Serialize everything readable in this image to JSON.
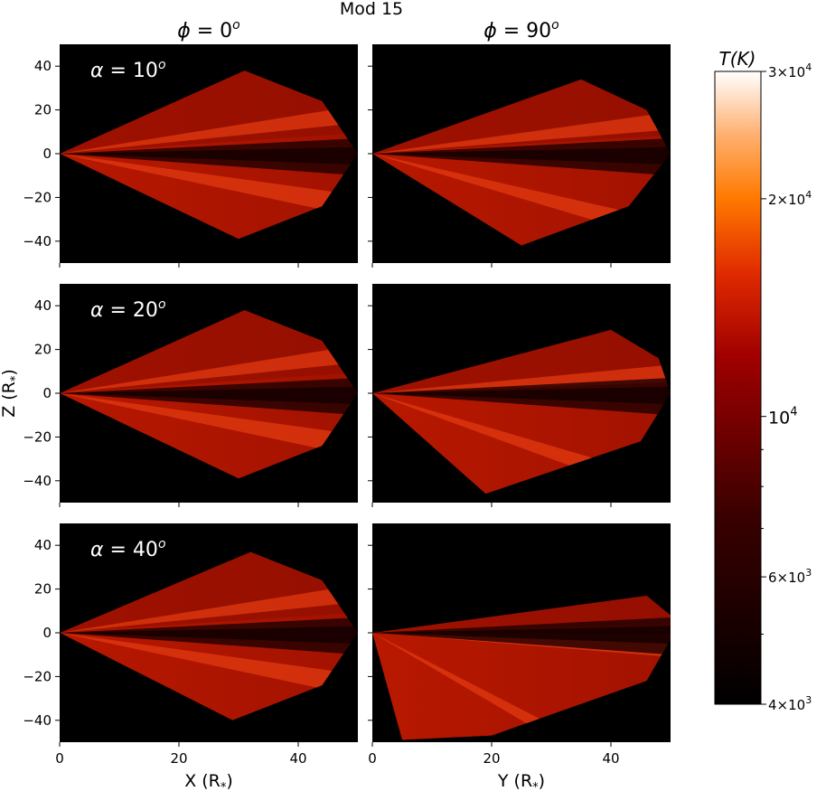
{
  "figure": {
    "title": "Mod 15",
    "column_titles": [
      {
        "var": "ϕ",
        "rest": " = 0",
        "sup": "o"
      },
      {
        "var": "ϕ",
        "rest": " = 90",
        "sup": "o"
      }
    ],
    "row_labels": [
      {
        "var": "α",
        "rest": " = 10",
        "sup": "o"
      },
      {
        "var": "α",
        "rest": " = 20",
        "sup": "o"
      },
      {
        "var": "α",
        "rest": " = 40",
        "sup": "o"
      }
    ],
    "ylabel": {
      "main": "Z (R",
      "sub": "*",
      "close": ")"
    },
    "xlabels": [
      {
        "main": "X (R",
        "sub": "*",
        "close": ")"
      },
      {
        "main": "Y (R",
        "sub": "*",
        "close": ")"
      }
    ]
  },
  "chart_data": {
    "type": "heatmap",
    "title": "Mod 15",
    "grid": false,
    "layout": "3 rows x 2 columns",
    "x_ticks": [
      0,
      20,
      40
    ],
    "y_ticks": [
      40,
      20,
      0,
      -20,
      -40
    ],
    "xlim": [
      0,
      50
    ],
    "ylim": [
      -50,
      50
    ],
    "panels": [
      {
        "column": "ϕ = 0°",
        "alpha": "α = 10°",
        "xlabel": "X (R*)",
        "ylabel": "Z (R*)",
        "outline": [
          [
            0,
            0
          ],
          [
            31,
            38
          ],
          [
            44,
            24
          ],
          [
            50,
            0
          ],
          [
            44,
            -24
          ],
          [
            30,
            -39
          ],
          [
            0,
            0
          ]
        ],
        "bright_streaks_z": [
          6,
          -8
        ]
      },
      {
        "column": "ϕ = 90°",
        "alpha": "α = 10°",
        "xlabel": "Y (R*)",
        "outline": [
          [
            0,
            0
          ],
          [
            35,
            34
          ],
          [
            46,
            20
          ],
          [
            50,
            0
          ],
          [
            43,
            -24
          ],
          [
            25,
            -42
          ],
          [
            0,
            0
          ]
        ],
        "bright_streaks_z": [
          5,
          -12
        ]
      },
      {
        "column": "ϕ = 0°",
        "alpha": "α = 20°",
        "xlabel": "X (R*)",
        "ylabel": "Z (R*)",
        "outline": [
          [
            0,
            0
          ],
          [
            31,
            38
          ],
          [
            44,
            24
          ],
          [
            50,
            0
          ],
          [
            44,
            -24
          ],
          [
            30,
            -39
          ],
          [
            0,
            0
          ]
        ],
        "bright_streaks_z": [
          6,
          -8
        ]
      },
      {
        "column": "ϕ = 90°",
        "alpha": "α = 20°",
        "xlabel": "Y (R*)",
        "outline": [
          [
            0,
            0
          ],
          [
            40,
            29
          ],
          [
            48,
            16
          ],
          [
            50,
            0
          ],
          [
            45,
            -22
          ],
          [
            19,
            -46
          ],
          [
            0,
            0
          ]
        ],
        "bright_streaks_z": [
          3,
          -15
        ]
      },
      {
        "column": "ϕ = 0°",
        "alpha": "α = 40°",
        "xlabel": "X (R*)",
        "ylabel": "Z (R*)",
        "outline": [
          [
            0,
            0
          ],
          [
            32,
            37
          ],
          [
            44,
            24
          ],
          [
            50,
            0
          ],
          [
            44,
            -24
          ],
          [
            29,
            -40
          ],
          [
            0,
            0
          ]
        ],
        "bright_streaks_z": [
          6,
          -8
        ]
      },
      {
        "column": "ϕ = 90°",
        "alpha": "α = 40°",
        "xlabel": "Y (R*)",
        "outline": [
          [
            0,
            0
          ],
          [
            46,
            17
          ],
          [
            50,
            8
          ],
          [
            50,
            -3
          ],
          [
            46,
            -22
          ],
          [
            20,
            -47
          ],
          [
            5,
            -49
          ],
          [
            0,
            0
          ]
        ],
        "bright_streaks_z": [
          -2,
          -25
        ]
      }
    ],
    "colorbar": {
      "label": "T(K)",
      "scale": "log",
      "range": [
        4000,
        30000
      ],
      "major_ticks": [
        {
          "value": 30000,
          "mant": "3",
          "times": "×",
          "base": "10",
          "exp": "4"
        },
        {
          "value": 20000,
          "mant": "2",
          "times": "×",
          "base": "10",
          "exp": "4"
        },
        {
          "value": 10000,
          "mant": "",
          "times": "",
          "base": "10",
          "exp": "4"
        },
        {
          "value": 6000,
          "mant": "6",
          "times": "×",
          "base": "10",
          "exp": "3"
        },
        {
          "value": 4000,
          "mant": "4",
          "times": "×",
          "base": "10",
          "exp": "3"
        }
      ],
      "minor_ticks": [
        5000,
        7000,
        8000,
        9000
      ],
      "colormap": "gist_heat",
      "colors": {
        "black": "#000000",
        "dark_red": "#6a0000",
        "red": "#c81e00",
        "orange": "#ff8c00",
        "white": "#ffffff"
      }
    }
  }
}
